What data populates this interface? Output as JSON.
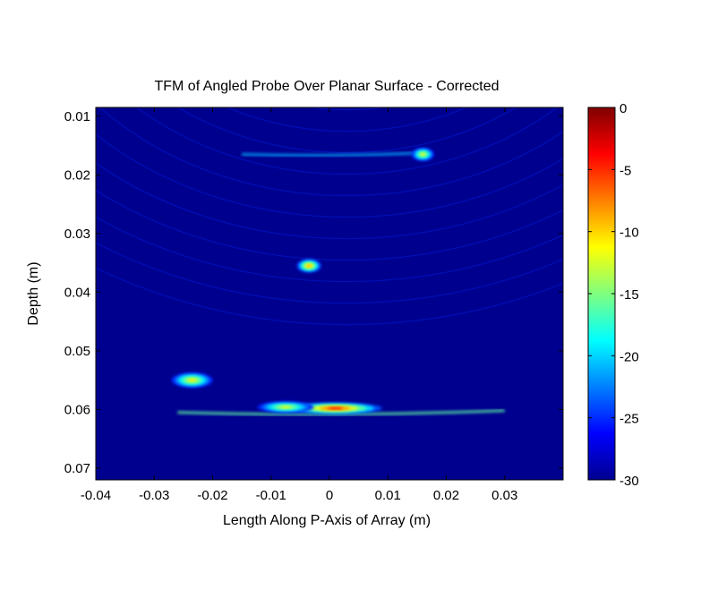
{
  "chart_data": {
    "type": "heatmap",
    "title": "TFM of Angled Probe Over Planar Surface - Corrected",
    "xlabel": "Length Along P-Axis of Array (m)",
    "ylabel": "Depth (m)",
    "xlim": [
      -0.04,
      0.04
    ],
    "ylim": [
      0.0085,
      0.072
    ],
    "y_reversed": true,
    "grid": false,
    "x_ticks": [
      {
        "value": -0.04,
        "label": "-0.04"
      },
      {
        "value": -0.03,
        "label": "-0.03"
      },
      {
        "value": -0.02,
        "label": "-0.02"
      },
      {
        "value": -0.01,
        "label": "-0.01"
      },
      {
        "value": 0,
        "label": "0"
      },
      {
        "value": 0.01,
        "label": "0.01"
      },
      {
        "value": 0.02,
        "label": "0.02"
      },
      {
        "value": 0.03,
        "label": "0.03"
      }
    ],
    "y_ticks": [
      {
        "value": 0.01,
        "label": "0.01"
      },
      {
        "value": 0.02,
        "label": "0.02"
      },
      {
        "value": 0.03,
        "label": "0.03"
      },
      {
        "value": 0.04,
        "label": "0.04"
      },
      {
        "value": 0.05,
        "label": "0.05"
      },
      {
        "value": 0.06,
        "label": "0.06"
      },
      {
        "value": 0.07,
        "label": "0.07"
      }
    ],
    "colorbar": {
      "range": [
        -30,
        0
      ],
      "colormap": "jet",
      "ticks": [
        {
          "value": 0,
          "label": "0"
        },
        {
          "value": -5,
          "label": "-5"
        },
        {
          "value": -10,
          "label": "-10"
        },
        {
          "value": -15,
          "label": "-15"
        },
        {
          "value": -20,
          "label": "-20"
        },
        {
          "value": -25,
          "label": "-25"
        },
        {
          "value": -30,
          "label": "-30"
        }
      ]
    },
    "background_level": -28,
    "features": [
      {
        "name": "reflector-spot-upper-right",
        "x": 0.016,
        "y": 0.0165,
        "sx": 0.0012,
        "sy": 0.0007,
        "level": -9
      },
      {
        "name": "reflector-spot-middle",
        "x": -0.0035,
        "y": 0.0355,
        "sx": 0.0013,
        "sy": 0.0007,
        "level": -5
      },
      {
        "name": "reflector-spot-lower-left",
        "x": -0.0235,
        "y": 0.055,
        "sx": 0.0022,
        "sy": 0.0008,
        "level": -8
      },
      {
        "name": "backwall-peak-center",
        "x": 0.001,
        "y": 0.0598,
        "sx": 0.005,
        "sy": 0.0006,
        "level": 0
      },
      {
        "name": "backwall-peak-left",
        "x": -0.0075,
        "y": 0.0596,
        "sx": 0.003,
        "sy": 0.0006,
        "level": -9
      }
    ],
    "arcs": [
      {
        "name": "backwall-arc",
        "x_from": -0.026,
        "x_to": 0.03,
        "y_center": 0.0605,
        "curvature": 5,
        "level": -16
      },
      {
        "name": "upper-arc",
        "x_from": -0.015,
        "x_to": 0.017,
        "y_center": 0.0165,
        "curvature": 3,
        "level": -21
      }
    ]
  }
}
